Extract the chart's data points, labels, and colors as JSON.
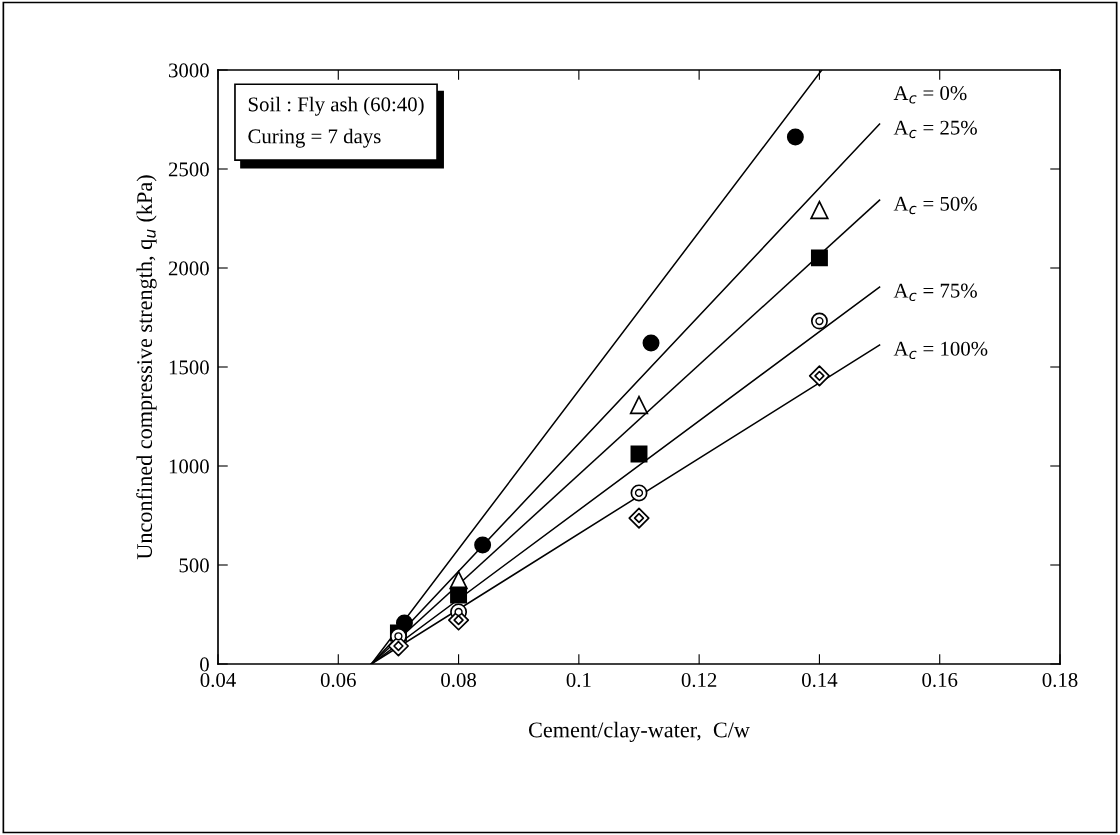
{
  "chart_data": {
    "type": "scatter",
    "xlabel": "Cement/clay-water,  C/w",
    "ylabel": "Unconfined compressive strength, q$_{u}$ (kPa)",
    "xlim": [
      0.04,
      0.18
    ],
    "xticks": [
      0.04,
      0.06,
      0.08,
      0.1,
      0.12,
      0.14,
      0.16,
      0.18
    ],
    "ylim": [
      0,
      3000
    ],
    "yticks": [
      0,
      500,
      1000,
      1500,
      2000,
      2500,
      3000
    ],
    "grid": false,
    "legend": "right",
    "annotations": [
      "Soil : Fly ash (60:40)",
      "Curing = 7 days"
    ],
    "series": [
      {
        "color": "#000000",
        "marker": "circle",
        "x": [
          0.071,
          0.084,
          0.112,
          0.136
        ],
        "values": [
          207,
          601,
          1621,
          2662
        ]
      },
      {
        "color": "#000000",
        "marker": "triangle",
        "x": [
          0.08,
          0.11,
          0.14
        ],
        "values": [
          424,
          1308,
          2293
        ]
      },
      {
        "color": "#000000",
        "marker": "square",
        "x": [
          0.07,
          0.08,
          0.11,
          0.14
        ],
        "values": [
          157,
          348,
          1061,
          2051
        ]
      },
      {
        "color": "#000000",
        "marker": "circle",
        "x": [
          0.07,
          0.08,
          0.11,
          0.14
        ],
        "values": [
          140,
          263,
          864,
          1732
        ]
      },
      {
        "color": "#000000",
        "marker": "diamond",
        "x": [
          0.07,
          0.08,
          0.11,
          0.14
        ],
        "values": [
          91,
          222,
          737,
          1455
        ]
      },
      {
        "type": "line",
        "name": "A$_{c}$ = 0%",
        "color": "#000000",
        "x": [
          0.0655,
          0.1404
        ],
        "values": [
          0,
          3000
        ]
      },
      {
        "type": "line",
        "name": "A$_{c}$ = 25%",
        "color": "#000000",
        "x": [
          0.0655,
          0.15
        ],
        "values": [
          0,
          2727
        ]
      },
      {
        "type": "line",
        "name": "A$_{c}$ = 50%",
        "color": "#000000",
        "x": [
          0.0655,
          0.15
        ],
        "values": [
          0,
          2343
        ]
      },
      {
        "type": "line",
        "name": "A$_{c}$ = 75%",
        "color": "#000000",
        "x": [
          0.0655,
          0.15
        ],
        "values": [
          0,
          1904
        ]
      },
      {
        "type": "line",
        "name": "A$_{c}$ = 100%",
        "color": "#000000",
        "x": [
          0.0655,
          0.15
        ],
        "values": [
          0,
          1611
        ]
      }
    ]
  }
}
